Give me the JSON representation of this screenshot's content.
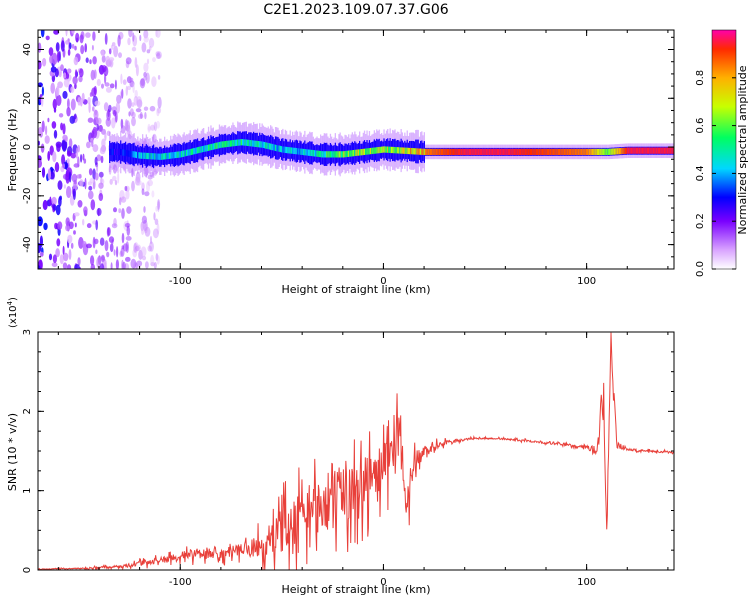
{
  "figure": {
    "title": "C2E1.2023.109.07.37.G06"
  },
  "colors": {
    "snr_line": "#e8403a",
    "axis": "#000000",
    "ridge_core": "#e8102a"
  },
  "chart_data": [
    {
      "type": "heatmap",
      "title": "C2E1.2023.109.07.37.G06",
      "xlabel": "Height of straight line (km)",
      "ylabel": "Frequency (Hz)",
      "xlim": [
        -170,
        143
      ],
      "ylim": [
        -50,
        48
      ],
      "x_ticks": [
        -100,
        0,
        100
      ],
      "x_tick_labels": [
        "-100",
        "0",
        "100"
      ],
      "y_ticks": [
        -40,
        -20,
        0,
        20,
        40
      ],
      "y_tick_labels": [
        "-40",
        "-20",
        "0",
        "20",
        "40"
      ],
      "colorbar": {
        "label": "Normalized spectral amplitude",
        "range": [
          0,
          1
        ],
        "ticks": [
          0,
          0.2,
          0.4,
          0.6,
          0.8
        ],
        "tick_labels": [
          "0.0",
          "0.2",
          "0.4",
          "0.6",
          "0.8"
        ],
        "colormap": "rainbow"
      },
      "ridge": {
        "x": [
          -130,
          -120,
          -110,
          -100,
          -90,
          -80,
          -70,
          -60,
          -50,
          -40,
          -30,
          -20,
          -10,
          0,
          10,
          20,
          40,
          60,
          80,
          100,
          110,
          120,
          143
        ],
        "y": [
          -2,
          -3.5,
          -4,
          -3,
          -1,
          1,
          2,
          1,
          -1,
          -2,
          -3,
          -3,
          -2,
          -1,
          -1.5,
          -2,
          -2,
          -2,
          -2,
          -2,
          -2,
          -1.5,
          -1.5
        ],
        "amplitude": [
          0.3,
          0.45,
          0.5,
          0.5,
          0.5,
          0.55,
          0.55,
          0.5,
          0.45,
          0.45,
          0.55,
          0.65,
          0.7,
          0.7,
          0.75,
          0.85,
          0.95,
          0.95,
          0.9,
          0.85,
          0.6,
          0.95,
          0.95
        ]
      },
      "noise_region_x": [
        -170,
        -120
      ]
    },
    {
      "type": "line",
      "xlabel": "Height of straight line (km)",
      "ylabel": "SNR (10 * v/v)",
      "y_scale_label": "(x10",
      "y_scale_exp": "4",
      "y_scale_close": ")",
      "xlim": [
        -170,
        143
      ],
      "ylim": [
        0,
        3
      ],
      "x_ticks": [
        -100,
        0,
        100
      ],
      "x_tick_labels": [
        "-100",
        "0",
        "100"
      ],
      "y_ticks": [
        0,
        1,
        2,
        3
      ],
      "y_tick_labels": [
        "0",
        "1",
        "2",
        "3"
      ],
      "series": [
        {
          "x": [
            -170,
            -150,
            -130,
            -120,
            -110,
            -100,
            -90,
            -80,
            -70,
            -60,
            -50,
            -40,
            -30,
            -20,
            -10,
            0,
            5,
            8,
            10,
            12,
            15,
            20,
            30,
            40,
            50,
            60,
            70,
            80,
            90,
            100,
            105,
            108,
            110,
            112,
            115,
            120,
            130,
            143
          ],
          "y": [
            0.01,
            0.02,
            0.04,
            0.08,
            0.12,
            0.18,
            0.22,
            0.2,
            0.25,
            0.3,
            0.5,
            0.7,
            0.85,
            0.95,
            1.1,
            1.3,
            1.5,
            1.9,
            1.2,
            0.8,
            1.35,
            1.5,
            1.6,
            1.65,
            1.66,
            1.65,
            1.63,
            1.6,
            1.58,
            1.55,
            1.5,
            2.4,
            0.5,
            2.9,
            1.55,
            1.52,
            1.5,
            1.48
          ],
          "noise": [
            0.005,
            0.01,
            0.03,
            0.05,
            0.07,
            0.08,
            0.12,
            0.1,
            0.15,
            0.25,
            0.45,
            0.55,
            0.6,
            0.6,
            0.55,
            0.5,
            0.4,
            0.35,
            0.5,
            0.4,
            0.2,
            0.1,
            0.05,
            0.02,
            0.015,
            0.015,
            0.02,
            0.02,
            0.02,
            0.03,
            0.1,
            0.3,
            0.3,
            0.3,
            0.05,
            0.02,
            0.02,
            0.02
          ]
        }
      ]
    }
  ]
}
